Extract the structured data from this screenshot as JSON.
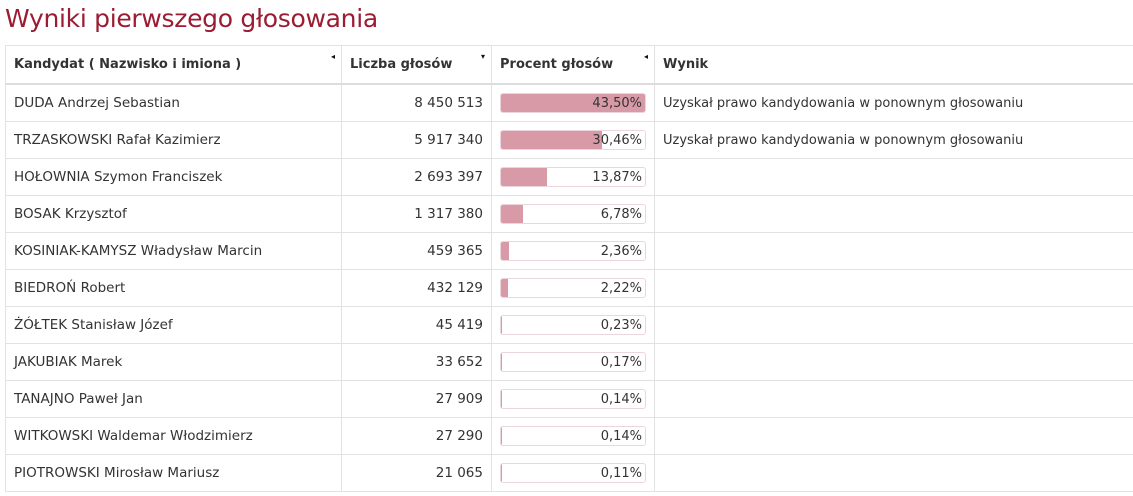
{
  "title": "Wyniki pierwszego głosowania",
  "columns": [
    {
      "label": "Kandydat ( Nazwisko i imiona )",
      "sort": "◂"
    },
    {
      "label": "Liczba głosów",
      "sort": "▾"
    },
    {
      "label": "Procent głosów",
      "sort": "◂"
    },
    {
      "label": "Wynik",
      "sort": ""
    }
  ],
  "bar_color": "#d99aa8",
  "rows": [
    {
      "name": "DUDA Andrzej Sebastian",
      "votes": "8 450 513",
      "percent": "43,50%",
      "pct": 43.5,
      "result": "Uzyskał prawo kandydowania w ponownym głosowaniu"
    },
    {
      "name": "TRZASKOWSKI Rafał Kazimierz",
      "votes": "5 917 340",
      "percent": "30,46%",
      "pct": 30.46,
      "result": "Uzyskał prawo kandydowania w ponownym głosowaniu"
    },
    {
      "name": "HOŁOWNIA Szymon Franciszek",
      "votes": "2 693 397",
      "percent": "13,87%",
      "pct": 13.87,
      "result": ""
    },
    {
      "name": "BOSAK Krzysztof",
      "votes": "1 317 380",
      "percent": "6,78%",
      "pct": 6.78,
      "result": ""
    },
    {
      "name": "KOSINIAK-KAMYSZ Władysław Marcin",
      "votes": "459 365",
      "percent": "2,36%",
      "pct": 2.36,
      "result": ""
    },
    {
      "name": "BIEDROŃ Robert",
      "votes": "432 129",
      "percent": "2,22%",
      "pct": 2.22,
      "result": ""
    },
    {
      "name": "ŻÓŁTEK Stanisław Józef",
      "votes": "45 419",
      "percent": "0,23%",
      "pct": 0.23,
      "result": ""
    },
    {
      "name": "JAKUBIAK Marek",
      "votes": "33 652",
      "percent": "0,17%",
      "pct": 0.17,
      "result": ""
    },
    {
      "name": "TANAJNO Paweł Jan",
      "votes": "27 909",
      "percent": "0,14%",
      "pct": 0.14,
      "result": ""
    },
    {
      "name": "WITKOWSKI Waldemar Włodzimierz",
      "votes": "27 290",
      "percent": "0,14%",
      "pct": 0.14,
      "result": ""
    },
    {
      "name": "PIOTROWSKI Mirosław Mariusz",
      "votes": "21 065",
      "percent": "0,11%",
      "pct": 0.11,
      "result": ""
    }
  ]
}
